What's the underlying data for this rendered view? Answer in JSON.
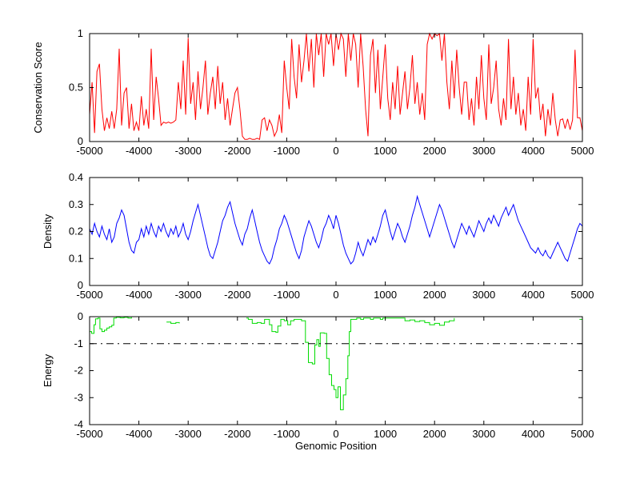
{
  "figure": {
    "background": "#ffffff",
    "xlabel": "Genomic Position"
  },
  "chart_data": [
    {
      "type": "line",
      "name": "conservation",
      "title": "",
      "xlabel": "",
      "ylabel": "Conservation Score",
      "color": "#ff0000",
      "grid": false,
      "legend": null,
      "xlim": [
        -5000,
        5000
      ],
      "ylim": [
        0,
        1
      ],
      "xticks": [
        -5000,
        -4000,
        -3000,
        -2000,
        -1000,
        0,
        1000,
        2000,
        3000,
        4000,
        5000
      ],
      "xtick_labels": [
        "-5000",
        "-4000",
        "-3000",
        "-2000",
        "-1000",
        "0",
        "1000",
        "2000",
        "3000",
        "4000",
        "5000"
      ],
      "yticks": [
        0,
        0.5,
        1
      ],
      "ytick_labels": [
        "0",
        "0.5",
        "1"
      ],
      "x_start": -5000,
      "x_step": 50,
      "values": [
        0.25,
        0.55,
        0.08,
        0.65,
        0.72,
        0.3,
        0.1,
        0.22,
        0.12,
        0.28,
        0.12,
        0.3,
        0.86,
        0.15,
        0.45,
        0.5,
        0.12,
        0.35,
        0.1,
        0.18,
        0.1,
        0.42,
        0.15,
        0.3,
        0.12,
        0.86,
        0.2,
        0.6,
        0.4,
        0.15,
        0.18,
        0.17,
        0.18,
        0.17,
        0.18,
        0.2,
        0.55,
        0.3,
        0.75,
        0.25,
        0.96,
        0.35,
        0.55,
        0.2,
        0.65,
        0.3,
        0.5,
        0.75,
        0.25,
        0.45,
        0.6,
        0.3,
        0.7,
        0.35,
        0.55,
        0.2,
        0.4,
        0.15,
        0.3,
        0.45,
        0.5,
        0.3,
        0.05,
        0.02,
        0.02,
        0.03,
        0.02,
        0.02,
        0.03,
        0.02,
        0.2,
        0.22,
        0.1,
        0.2,
        0.15,
        0.05,
        0.1,
        0.25,
        0.08,
        0.75,
        0.5,
        0.3,
        0.95,
        0.6,
        0.4,
        0.9,
        0.55,
        0.75,
        1.0,
        0.65,
        0.95,
        0.5,
        1.0,
        0.8,
        1.0,
        0.6,
        1.0,
        0.9,
        1.0,
        0.7,
        1.0,
        0.85,
        1.0,
        0.95,
        0.6,
        1.0,
        0.75,
        1.0,
        0.9,
        0.5,
        1.0,
        0.7,
        0.3,
        0.05,
        0.8,
        0.95,
        0.45,
        0.85,
        0.3,
        0.6,
        0.9,
        0.4,
        0.2,
        0.55,
        0.3,
        0.7,
        0.25,
        0.45,
        0.65,
        0.3,
        0.5,
        0.8,
        0.35,
        0.55,
        0.25,
        0.45,
        0.2,
        0.9,
        1.0,
        0.95,
        1.0,
        0.98,
        1.0,
        0.75,
        1.0,
        0.55,
        0.3,
        0.75,
        0.4,
        0.85,
        0.5,
        0.25,
        0.55,
        0.55,
        0.2,
        0.4,
        0.15,
        0.6,
        0.3,
        0.8,
        0.4,
        0.2,
        0.9,
        0.35,
        0.5,
        0.75,
        0.3,
        0.15,
        0.4,
        0.2,
        0.95,
        0.3,
        0.6,
        0.25,
        0.45,
        0.15,
        0.3,
        0.1,
        0.6,
        0.25,
        0.95,
        0.4,
        0.5,
        0.2,
        0.35,
        0.05,
        0.3,
        0.15,
        0.45,
        0.2,
        0.05,
        0.2,
        0.21,
        0.12,
        0.21,
        0.11,
        0.2,
        0.85,
        0.22,
        0.22,
        0.1
      ]
    },
    {
      "type": "line",
      "name": "density",
      "title": "",
      "xlabel": "",
      "ylabel": "Density",
      "color": "#0000ff",
      "grid": false,
      "legend": null,
      "xlim": [
        -5000,
        5000
      ],
      "ylim": [
        0,
        0.4
      ],
      "xticks": [
        -5000,
        -4000,
        -3000,
        -2000,
        -1000,
        0,
        1000,
        2000,
        3000,
        4000,
        5000
      ],
      "xtick_labels": [
        "-5000",
        "-4000",
        "-3000",
        "-2000",
        "-1000",
        "0",
        "1000",
        "2000",
        "3000",
        "4000",
        "5000"
      ],
      "yticks": [
        0,
        0.1,
        0.2,
        0.3,
        0.4
      ],
      "ytick_labels": [
        "0",
        "0.1",
        "0.2",
        "0.3",
        "0.4"
      ],
      "x_start": -5000,
      "x_step": 50,
      "values": [
        0.21,
        0.19,
        0.23,
        0.2,
        0.18,
        0.22,
        0.19,
        0.17,
        0.21,
        0.16,
        0.18,
        0.23,
        0.25,
        0.28,
        0.26,
        0.21,
        0.16,
        0.13,
        0.12,
        0.16,
        0.17,
        0.21,
        0.18,
        0.22,
        0.19,
        0.23,
        0.2,
        0.18,
        0.22,
        0.2,
        0.23,
        0.2,
        0.18,
        0.21,
        0.19,
        0.22,
        0.18,
        0.2,
        0.23,
        0.19,
        0.17,
        0.2,
        0.24,
        0.27,
        0.3,
        0.26,
        0.22,
        0.18,
        0.14,
        0.11,
        0.1,
        0.13,
        0.16,
        0.2,
        0.24,
        0.26,
        0.29,
        0.31,
        0.27,
        0.23,
        0.2,
        0.17,
        0.15,
        0.19,
        0.21,
        0.25,
        0.28,
        0.24,
        0.2,
        0.16,
        0.13,
        0.11,
        0.09,
        0.08,
        0.1,
        0.14,
        0.17,
        0.21,
        0.23,
        0.26,
        0.24,
        0.21,
        0.18,
        0.15,
        0.12,
        0.1,
        0.13,
        0.18,
        0.21,
        0.24,
        0.22,
        0.19,
        0.16,
        0.14,
        0.17,
        0.21,
        0.23,
        0.26,
        0.24,
        0.21,
        0.26,
        0.23,
        0.19,
        0.15,
        0.12,
        0.1,
        0.08,
        0.09,
        0.12,
        0.16,
        0.13,
        0.11,
        0.14,
        0.17,
        0.15,
        0.18,
        0.16,
        0.19,
        0.22,
        0.26,
        0.28,
        0.24,
        0.2,
        0.17,
        0.2,
        0.23,
        0.21,
        0.18,
        0.16,
        0.19,
        0.22,
        0.26,
        0.29,
        0.33,
        0.3,
        0.27,
        0.24,
        0.21,
        0.18,
        0.21,
        0.24,
        0.27,
        0.3,
        0.28,
        0.25,
        0.22,
        0.19,
        0.16,
        0.14,
        0.17,
        0.2,
        0.23,
        0.21,
        0.19,
        0.22,
        0.2,
        0.18,
        0.21,
        0.24,
        0.22,
        0.2,
        0.23,
        0.25,
        0.23,
        0.26,
        0.24,
        0.22,
        0.25,
        0.27,
        0.29,
        0.26,
        0.28,
        0.3,
        0.27,
        0.24,
        0.22,
        0.2,
        0.18,
        0.16,
        0.14,
        0.13,
        0.12,
        0.14,
        0.12,
        0.11,
        0.13,
        0.11,
        0.1,
        0.12,
        0.14,
        0.16,
        0.14,
        0.12,
        0.1,
        0.09,
        0.12,
        0.15,
        0.18,
        0.21,
        0.23,
        0.22
      ]
    },
    {
      "type": "line",
      "style": "stairs",
      "name": "energy",
      "title": "",
      "xlabel": "Genomic Position",
      "ylabel": "Energy",
      "color": "#00dc00",
      "grid": false,
      "legend": null,
      "xlim": [
        -5000,
        5000
      ],
      "ylim": [
        -4,
        0
      ],
      "xticks": [
        -5000,
        -4000,
        -3000,
        -2000,
        -1000,
        0,
        1000,
        2000,
        3000,
        4000,
        5000
      ],
      "xtick_labels": [
        "-5000",
        "-4000",
        "-3000",
        "-2000",
        "-1000",
        "0",
        "1000",
        "2000",
        "3000",
        "4000",
        "5000"
      ],
      "yticks": [
        0,
        -1,
        -2,
        -3,
        -4
      ],
      "ytick_labels": [
        "0",
        "-1",
        "-2",
        "-3",
        "-4"
      ],
      "threshold": {
        "value": -1,
        "line_style": "dash-dot",
        "color": "#000000"
      },
      "points": [
        [
          -5000,
          -0.55
        ],
        [
          -4960,
          -0.62
        ],
        [
          -4910,
          -0.3
        ],
        [
          -4880,
          -0.08
        ],
        [
          -4830,
          -0.05
        ],
        [
          -4790,
          -0.45
        ],
        [
          -4750,
          -0.55
        ],
        [
          -4700,
          -0.5
        ],
        [
          -4650,
          -0.42
        ],
        [
          -4600,
          -0.38
        ],
        [
          -4550,
          -0.32
        ],
        [
          -4510,
          -0.05
        ],
        [
          -4460,
          -0.02
        ],
        [
          -4380,
          -0.04
        ],
        [
          -4300,
          -0.02
        ],
        [
          -4220,
          -0.05
        ],
        [
          -4150,
          -0.02
        ],
        [
          -4100,
          null
        ],
        [
          -3440,
          -0.2
        ],
        [
          -3350,
          -0.25
        ],
        [
          -3250,
          -0.22
        ],
        [
          -3180,
          -0.25
        ],
        [
          -3100,
          null
        ],
        [
          -1820,
          -0.05
        ],
        [
          -1780,
          -0.1
        ],
        [
          -1700,
          -0.25
        ],
        [
          -1600,
          -0.22
        ],
        [
          -1520,
          -0.25
        ],
        [
          -1450,
          -0.1
        ],
        [
          -1350,
          -0.3
        ],
        [
          -1300,
          -0.55
        ],
        [
          -1220,
          -0.58
        ],
        [
          -1180,
          -0.35
        ],
        [
          -1120,
          -0.1
        ],
        [
          -1050,
          -0.15
        ],
        [
          -980,
          -0.3
        ],
        [
          -920,
          -0.15
        ],
        [
          -850,
          -0.1
        ],
        [
          -700,
          -0.15
        ],
        [
          -620,
          -0.95
        ],
        [
          -560,
          -1.7
        ],
        [
          -480,
          -1.75
        ],
        [
          -430,
          -1.05
        ],
        [
          -390,
          -0.85
        ],
        [
          -350,
          -1.1
        ],
        [
          -320,
          -0.6
        ],
        [
          -240,
          -0.62
        ],
        [
          -190,
          -1.55
        ],
        [
          -140,
          -2.15
        ],
        [
          -90,
          -2.55
        ],
        [
          -40,
          -2.7
        ],
        [
          0,
          -3.0
        ],
        [
          40,
          -2.6
        ],
        [
          90,
          -3.45
        ],
        [
          150,
          -2.9
        ],
        [
          200,
          -2.3
        ],
        [
          240,
          -1.45
        ],
        [
          270,
          -0.55
        ],
        [
          300,
          -0.1
        ],
        [
          420,
          -0.05
        ],
        [
          500,
          -0.1
        ],
        [
          560,
          -0.05
        ],
        [
          700,
          -0.1
        ],
        [
          760,
          -0.05
        ],
        [
          900,
          -0.1
        ],
        [
          950,
          -0.05
        ],
        [
          1300,
          -0.05
        ],
        [
          1400,
          -0.15
        ],
        [
          1500,
          -0.12
        ],
        [
          1600,
          -0.18
        ],
        [
          1700,
          -0.15
        ],
        [
          1800,
          -0.22
        ],
        [
          1900,
          -0.3
        ],
        [
          2000,
          -0.25
        ],
        [
          2100,
          -0.32
        ],
        [
          2200,
          -0.2
        ],
        [
          2300,
          -0.15
        ],
        [
          2400,
          -0.05
        ],
        [
          2450,
          null
        ],
        [
          4940,
          -0.1
        ],
        [
          5000,
          -0.08
        ]
      ]
    }
  ]
}
